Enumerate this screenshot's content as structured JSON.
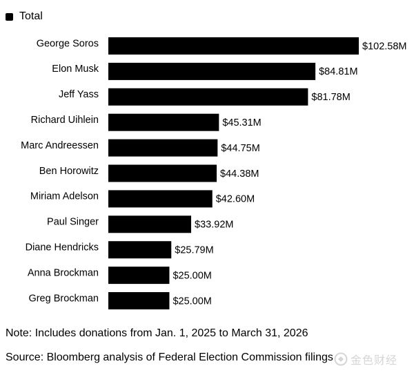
{
  "chart_data": {
    "type": "bar",
    "orientation": "horizontal",
    "legend": {
      "label": "Total",
      "color": "#000000",
      "position": "top-left"
    },
    "categories": [
      "George Soros",
      "Elon Musk",
      "Jeff Yass",
      "Richard Uihlein",
      "Marc Andreessen",
      "Ben Horowitz",
      "Miriam Adelson",
      "Paul Singer",
      "Diane Hendricks",
      "Anna Brockman",
      "Greg Brockman"
    ],
    "series": [
      {
        "name": "Total",
        "values": [
          102.58,
          84.81,
          81.78,
          45.31,
          44.75,
          44.38,
          42.6,
          33.92,
          25.79,
          25.0,
          25.0
        ]
      }
    ],
    "value_labels": [
      "$102.58M",
      "$84.81M",
      "$81.78M",
      "$45.31M",
      "$44.75M",
      "$44.38M",
      "$42.60M",
      "$33.92M",
      "$25.79M",
      "$25.00M",
      "$25.00M"
    ],
    "bar_color": "#000000",
    "unit": "$M",
    "xlim": [
      0,
      102.58
    ],
    "grid": false
  },
  "note": "Note: Includes donations from Jan. 1, 2025 to March 31, 2026",
  "source": "Source: Bloomberg analysis of Federal Election Commission filings",
  "watermark": {
    "text": "金色财经",
    "icon": "gold-coin-logo-icon"
  }
}
